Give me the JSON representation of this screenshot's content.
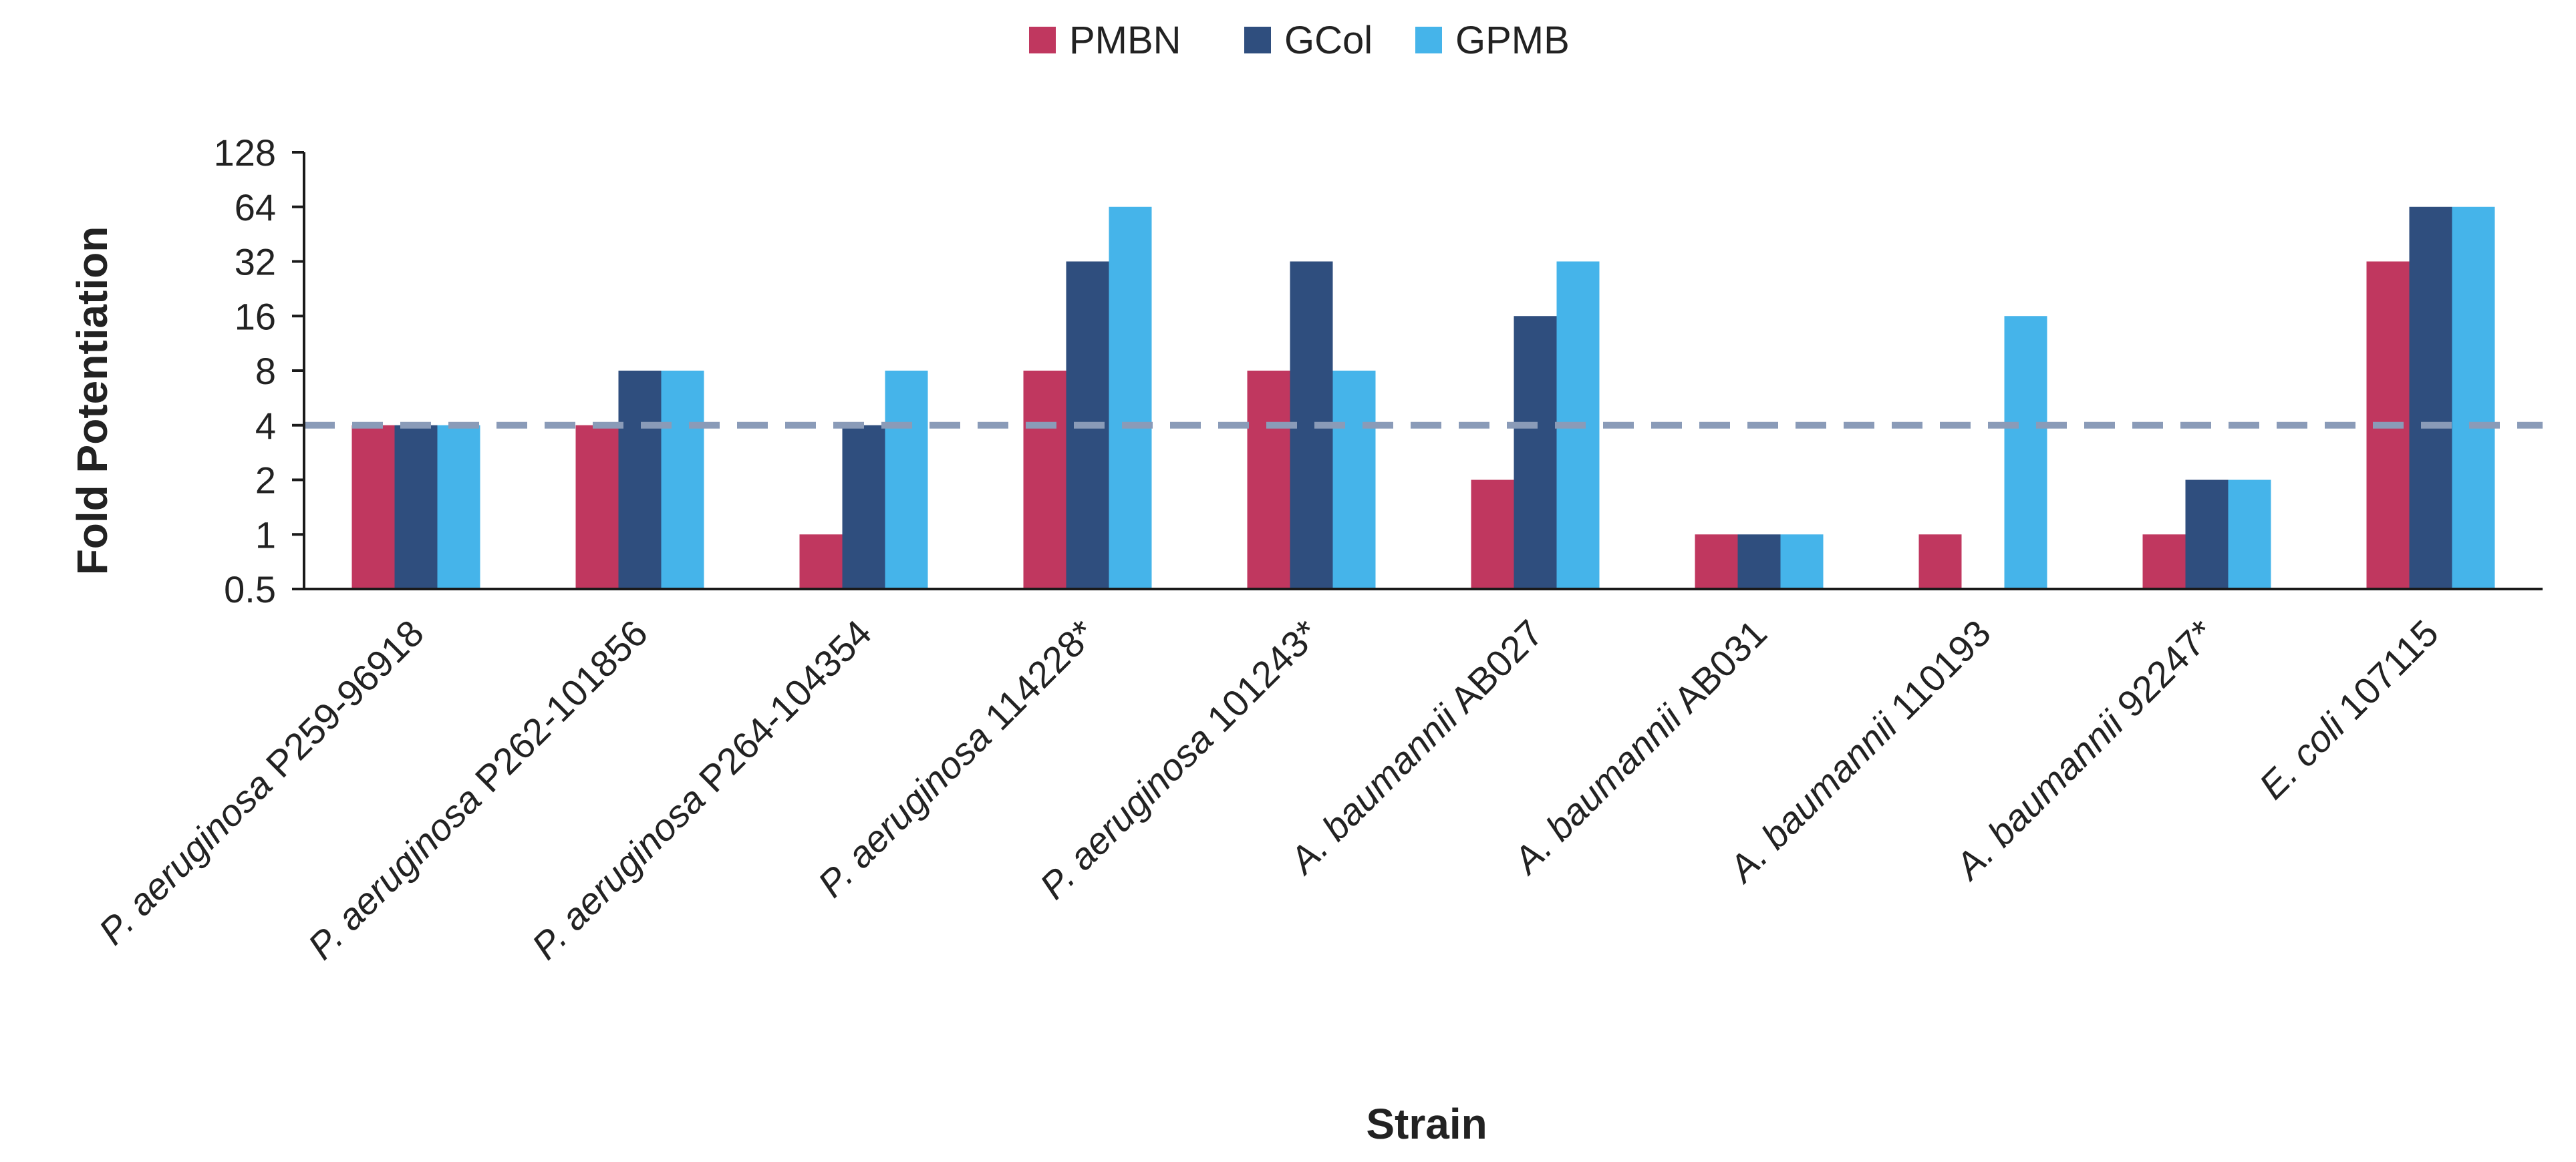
{
  "chart_data": {
    "type": "bar",
    "scale": "log2",
    "title": "",
    "xlabel": "Strain",
    "ylabel": "Fold Potentiation",
    "ylim": [
      0.5,
      128
    ],
    "yticks": [
      0.5,
      1,
      2,
      4,
      8,
      16,
      32,
      64,
      128
    ],
    "ytick_labels": [
      "0.5",
      "1",
      "2",
      "4",
      "8",
      "16",
      "32",
      "64",
      "128"
    ],
    "threshold_line": 4,
    "legend_position": "top-center",
    "categories": [
      {
        "species": "P. aeruginosa",
        "strain": "P259-96918"
      },
      {
        "species": "P. aeruginosa",
        "strain": "P262-101856"
      },
      {
        "species": "P. aeruginosa",
        "strain": "P264-104354"
      },
      {
        "species": "P. aeruginosa",
        "strain": "114228*"
      },
      {
        "species": "P. aeruginosa",
        "strain": "101243*"
      },
      {
        "species": "A. baumannii",
        "strain": "AB027"
      },
      {
        "species": "A. baumannii",
        "strain": "AB031"
      },
      {
        "species": "A. baumannii",
        "strain": "110193"
      },
      {
        "species": "A. baumannii",
        "strain": "92247*"
      },
      {
        "species": "E. coli",
        "strain": "107115"
      }
    ],
    "series": [
      {
        "name": "PMBN",
        "color": "#C0375F",
        "values": [
          4,
          4,
          1,
          8,
          8,
          2,
          1,
          1,
          1,
          32
        ]
      },
      {
        "name": "GCol",
        "color": "#2F4E7E",
        "values": [
          4,
          8,
          4,
          32,
          32,
          16,
          1,
          null,
          2,
          64
        ]
      },
      {
        "name": "GPMB",
        "color": "#45B4EA",
        "values": [
          4,
          8,
          8,
          64,
          8,
          32,
          1,
          16,
          2,
          64
        ]
      }
    ],
    "colors": {
      "axis": "#1a1a1a",
      "threshold": "#8A9BB8"
    }
  }
}
